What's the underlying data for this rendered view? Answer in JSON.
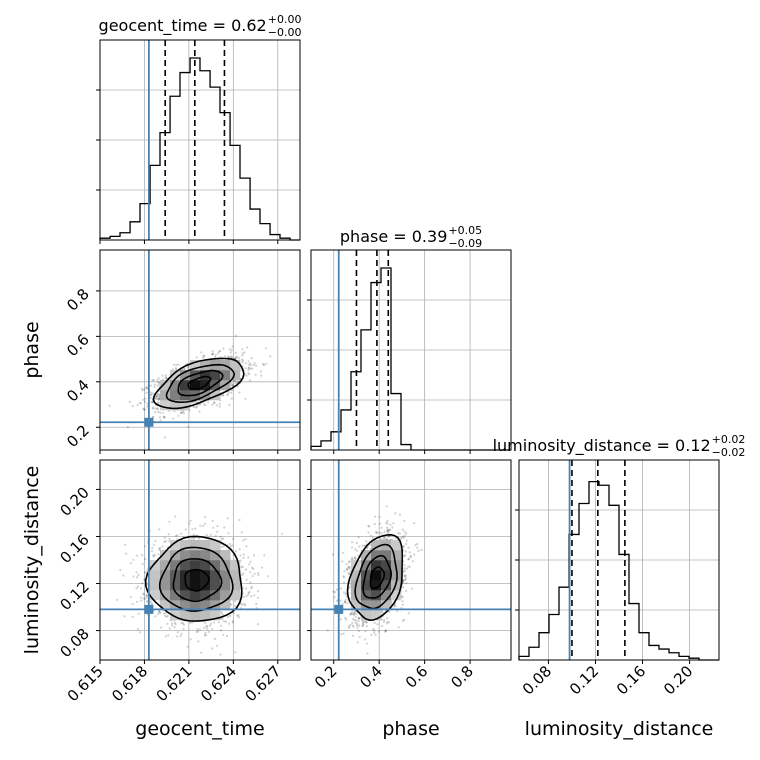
{
  "chart_data": {
    "type": "corner",
    "parameters": [
      "geocent_time",
      "phase",
      "luminosity_distance"
    ],
    "axis_labels": {
      "geocent_time": "geocent_time",
      "phase": "phase",
      "luminosity_distance": "luminosity_distance"
    },
    "titles": [
      {
        "param": "geocent_time",
        "name": "geocent_time",
        "median": "0.62",
        "plus": "+0.00",
        "minus": "−0.00"
      },
      {
        "param": "phase",
        "name": "phase",
        "median": "0.39",
        "plus": "+0.05",
        "minus": "−0.09"
      },
      {
        "param": "luminosity_distance",
        "name": "luminosity_distance",
        "median": "0.12",
        "plus": "+0.02",
        "minus": "−0.02"
      }
    ],
    "ranges": {
      "geocent_time": [
        0.615,
        0.6285
      ],
      "phase": [
        0.1,
        0.98
      ],
      "luminosity_distance": [
        0.055,
        0.225
      ]
    },
    "ticks": {
      "geocent_time": [
        "0.615",
        "0.618",
        "0.621",
        "0.624",
        "0.627"
      ],
      "phase": [
        "0.2",
        "0.4",
        "0.6",
        "0.8"
      ],
      "luminosity_distance": [
        "0.08",
        "0.12",
        "0.16",
        "0.20"
      ]
    },
    "truths": {
      "geocent_time": 0.6183,
      "phase": 0.222,
      "luminosity_distance": 0.098
    },
    "quantiles": {
      "geocent_time": [
        0.6194,
        0.6214,
        0.6234
      ],
      "phase": [
        0.3,
        0.39,
        0.44
      ],
      "luminosity_distance": [
        0.1,
        0.122,
        0.145
      ]
    },
    "histograms": {
      "geocent_time": {
        "edges": [
          0.615,
          0.61568,
          0.61635,
          0.61703,
          0.6177,
          0.61838,
          0.61905,
          0.61973,
          0.6204,
          0.62108,
          0.62175,
          0.62243,
          0.6231,
          0.62378,
          0.62445,
          0.62513,
          0.6258,
          0.62648,
          0.62715,
          0.62783,
          0.6285
        ],
        "counts": [
          0.01,
          0.02,
          0.04,
          0.1,
          0.2,
          0.41,
          0.59,
          0.79,
          0.92,
          1.0,
          0.93,
          0.84,
          0.7,
          0.52,
          0.34,
          0.17,
          0.09,
          0.03,
          0.01,
          0.0
        ]
      },
      "phase": {
        "edges": [
          0.1,
          0.144,
          0.188,
          0.232,
          0.276,
          0.32,
          0.364,
          0.408,
          0.452,
          0.496,
          0.54,
          0.584,
          0.628,
          0.672,
          0.716,
          0.76,
          0.804,
          0.848,
          0.892,
          0.936,
          0.98
        ],
        "counts": [
          0.02,
          0.05,
          0.1,
          0.22,
          0.43,
          0.66,
          0.92,
          1.0,
          0.31,
          0.03,
          0.0,
          0.0,
          0.0,
          0.0,
          0.0,
          0.0,
          0.0,
          0.0,
          0.0,
          0.0
        ]
      },
      "luminosity_distance": {
        "edges": [
          0.055,
          0.0635,
          0.072,
          0.0805,
          0.089,
          0.0975,
          0.106,
          0.1145,
          0.123,
          0.1315,
          0.14,
          0.1485,
          0.157,
          0.1655,
          0.174,
          0.1825,
          0.191,
          0.1995,
          0.208,
          0.2165,
          0.225
        ],
        "counts": [
          0.02,
          0.07,
          0.15,
          0.25,
          0.4,
          0.69,
          0.86,
          0.98,
          0.96,
          0.85,
          0.58,
          0.31,
          0.15,
          0.08,
          0.06,
          0.04,
          0.02,
          0.01,
          0.0,
          0.0
        ]
      }
    },
    "joint": [
      {
        "x": "geocent_time",
        "y": "phase",
        "mean": [
          0.6217,
          0.395
        ],
        "sd": [
          0.0015,
          0.055
        ],
        "corr": 0.55,
        "hist_peak": [
          0.6223,
          0.425
        ]
      },
      {
        "x": "geocent_time",
        "y": "luminosity_distance",
        "mean": [
          0.6215,
          0.123
        ],
        "sd": [
          0.0016,
          0.018
        ],
        "corr": 0.0,
        "hist_peak": [
          0.6214,
          0.123
        ]
      },
      {
        "x": "phase",
        "y": "luminosity_distance",
        "mean": [
          0.39,
          0.125
        ],
        "sd": [
          0.06,
          0.018
        ],
        "corr": 0.3,
        "hist_peak": [
          0.42,
          0.13
        ]
      }
    ],
    "grid": true,
    "colors": {
      "truth": "#4682b4",
      "hist": "#000000",
      "grid": "#b0b0b0"
    }
  }
}
